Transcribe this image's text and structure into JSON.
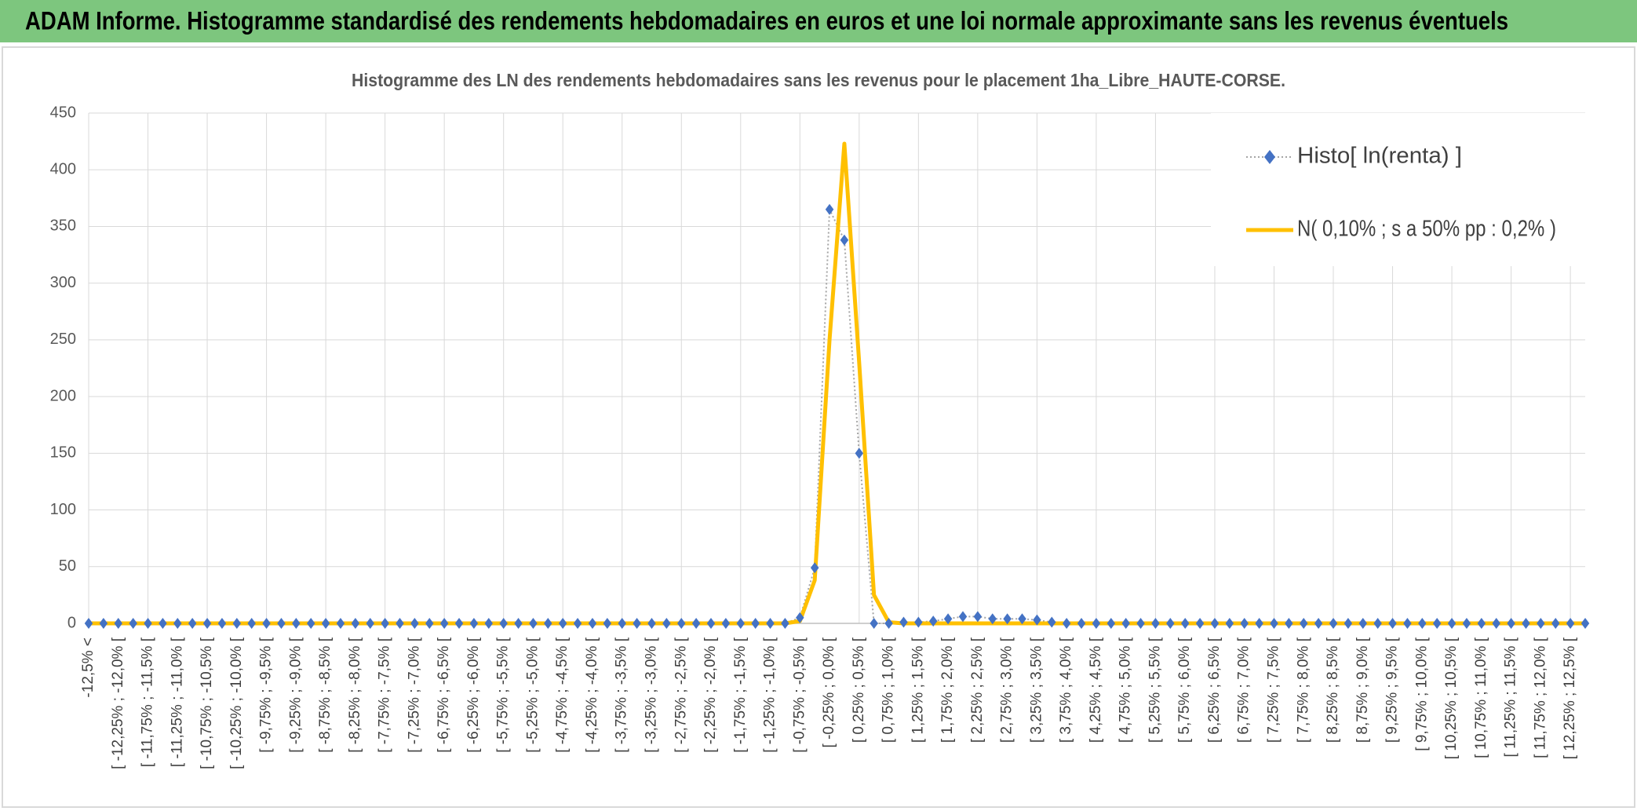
{
  "header": {
    "title": "ADAM Informe. Histogramme standardisé des rendements hebdomadaires en euros et une loi normale approximante sans les revenus éventuels"
  },
  "chart_data": {
    "type": "line",
    "title": "Histogramme des LN des rendements hebdomadaires sans les revenus pour le placement 1ha_Libre_HAUTE-CORSE.",
    "categories": [
      "-12,5% <",
      null,
      "[ -12,25% ; -12,0% [",
      null,
      "[ -11,75% ; -11,5% [",
      null,
      "[ -11,25% ; -11,0% [",
      null,
      "[ -10,75% ; -10,5% [",
      null,
      "[ -10,25% ; -10,0% [",
      null,
      "[ -9,75% ; -9,5% [",
      null,
      "[ -9,25% ; -9,0% [",
      null,
      "[ -8,75% ; -8,5% [",
      null,
      "[ -8,25% ; -8,0% [",
      null,
      "[ -7,75% ; -7,5% [",
      null,
      "[ -7,25% ; -7,0% [",
      null,
      "[ -6,75% ; -6,5% [",
      null,
      "[ -6,25% ; -6,0% [",
      null,
      "[ -5,75% ; -5,5% [",
      null,
      "[ -5,25% ; -5,0% [",
      null,
      "[ -4,75% ; -4,5% [",
      null,
      "[ -4,25% ; -4,0% [",
      null,
      "[ -3,75% ; -3,5% [",
      null,
      "[ -3,25% ; -3,0% [",
      null,
      "[ -2,75% ; -2,5% [",
      null,
      "[ -2,25% ; -2,0% [",
      null,
      "[ -1,75% ; -1,5% [",
      null,
      "[ -1,25% ; -1,0% [",
      null,
      "[ -0,75% ; -0,5% [",
      null,
      "[ -0,25% ; 0,0% [",
      null,
      "[ 0,25% ; 0,5% [",
      null,
      "[ 0,75% ; 1,0% [",
      null,
      "[ 1,25% ; 1,5% [",
      null,
      "[ 1,75% ; 2,0% [",
      null,
      "[ 2,25% ; 2,5% [",
      null,
      "[ 2,75% ; 3,0% [",
      null,
      "[ 3,25% ; 3,5% [",
      null,
      "[ 3,75% ; 4,0% [",
      null,
      "[ 4,25% ; 4,5% [",
      null,
      "[ 4,75% ; 5,0% [",
      null,
      "[ 5,25% ; 5,5% [",
      null,
      "[ 5,75% ; 6,0% [",
      null,
      "[ 6,25% ; 6,5% [",
      null,
      "[ 6,75% ; 7,0% [",
      null,
      "[ 7,25% ; 7,5% [",
      null,
      "[ 7,75% ; 8,0% [",
      null,
      "[ 8,25% ; 8,5% [",
      null,
      "[ 8,75% ; 9,0% [",
      null,
      "[ 9,25% ; 9,5% [",
      null,
      "[ 9,75% ; 10,0% [",
      null,
      "[ 10,25% ; 10,5% [",
      null,
      "[ 10,75% ; 11,0% [",
      null,
      "[ 11,25% ; 11,5% [",
      null,
      "[ 11,75% ; 12,0% [",
      null,
      "[ 12,25% ; 12,5% [",
      null
    ],
    "series": [
      {
        "name": "Histo[ ln(renta) ]",
        "color": "#4472c4",
        "line_color": "#a5a5a5",
        "values": [
          0,
          0,
          0,
          0,
          0,
          0,
          0,
          0,
          0,
          0,
          0,
          0,
          0,
          0,
          0,
          0,
          0,
          0,
          0,
          0,
          0,
          0,
          0,
          0,
          0,
          0,
          0,
          0,
          0,
          0,
          0,
          0,
          0,
          0,
          0,
          0,
          0,
          0,
          0,
          0,
          0,
          0,
          0,
          0,
          0,
          0,
          0,
          0,
          5,
          49,
          365,
          338,
          150,
          0,
          0,
          1,
          1,
          2,
          4,
          6,
          6,
          4,
          4,
          4,
          3,
          1,
          0,
          0,
          0,
          0,
          0,
          0,
          0,
          0,
          0,
          0,
          0,
          0,
          0,
          0,
          0,
          0,
          0,
          0,
          0,
          0,
          0,
          0,
          0,
          0,
          0,
          0,
          0,
          0,
          0,
          0,
          0,
          0,
          0,
          0,
          0,
          0
        ]
      },
      {
        "name": "N( 0,10% ; s a 50% pp : 0,2% )",
        "color": "#ffc000",
        "values": [
          0,
          0,
          0,
          0,
          0,
          0,
          0,
          0,
          0,
          0,
          0,
          0,
          0,
          0,
          0,
          0,
          0,
          0,
          0,
          0,
          0,
          0,
          0,
          0,
          0,
          0,
          0,
          0,
          0,
          0,
          0,
          0,
          0,
          0,
          0,
          0,
          0,
          0,
          0,
          0,
          0,
          0,
          0,
          0,
          0,
          0,
          0,
          0,
          2,
          38,
          250,
          423,
          230,
          25,
          1,
          0,
          0,
          0,
          0,
          0,
          0,
          0,
          0,
          0,
          0,
          0,
          0,
          0,
          0,
          0,
          0,
          0,
          0,
          0,
          0,
          0,
          0,
          0,
          0,
          0,
          0,
          0,
          0,
          0,
          0,
          0,
          0,
          0,
          0,
          0,
          0,
          0,
          0,
          0,
          0,
          0,
          0,
          0,
          0,
          0,
          0,
          0
        ]
      }
    ],
    "ylim": [
      0,
      450
    ],
    "yticks": [
      0,
      50,
      100,
      150,
      200,
      250,
      300,
      350,
      400,
      450
    ],
    "grid": true,
    "legend": "upper right"
  }
}
